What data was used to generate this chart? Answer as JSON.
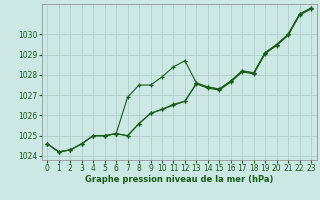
{
  "background_color": "#cce8e4",
  "grid_color": "#b0d0cc",
  "line_color": "#1a5c1a",
  "xlabel": "Graphe pression niveau de la mer (hPa)",
  "hours": [
    0,
    1,
    2,
    3,
    4,
    5,
    6,
    7,
    8,
    9,
    10,
    11,
    12,
    13,
    14,
    15,
    16,
    17,
    18,
    19,
    20,
    21,
    22,
    23
  ],
  "line1": [
    1024.6,
    1024.2,
    1024.3,
    1024.6,
    1025.0,
    1025.0,
    1025.1,
    1026.9,
    1027.5,
    1027.5,
    1027.9,
    1028.4,
    1028.7,
    1027.6,
    1027.4,
    1027.3,
    1027.7,
    1028.2,
    1028.1,
    1029.1,
    1029.5,
    1030.0,
    1031.0,
    1031.3
  ],
  "line2": [
    1024.6,
    1024.2,
    1024.3,
    1024.6,
    1025.0,
    1025.0,
    1025.1,
    1025.0,
    1025.6,
    1026.1,
    1026.3,
    1026.55,
    1026.7,
    1027.6,
    1027.4,
    1027.3,
    1027.7,
    1028.2,
    1028.1,
    1029.1,
    1029.5,
    1030.0,
    1031.0,
    1031.3
  ],
  "line3": [
    1024.6,
    1024.2,
    1024.3,
    1024.6,
    1025.0,
    1025.0,
    1025.1,
    1025.0,
    1025.6,
    1026.1,
    1026.3,
    1026.5,
    1026.7,
    1027.55,
    1027.35,
    1027.25,
    1027.65,
    1028.15,
    1028.05,
    1029.05,
    1029.45,
    1029.95,
    1030.95,
    1031.25
  ],
  "ylim": [
    1023.8,
    1031.5
  ],
  "yticks": [
    1024,
    1025,
    1026,
    1027,
    1028,
    1029,
    1030
  ],
  "xticks": [
    0,
    1,
    2,
    3,
    4,
    5,
    6,
    7,
    8,
    9,
    10,
    11,
    12,
    13,
    14,
    15,
    16,
    17,
    18,
    19,
    20,
    21,
    22,
    23
  ],
  "xlabel_fontsize": 6.0,
  "tick_fontsize": 5.5
}
